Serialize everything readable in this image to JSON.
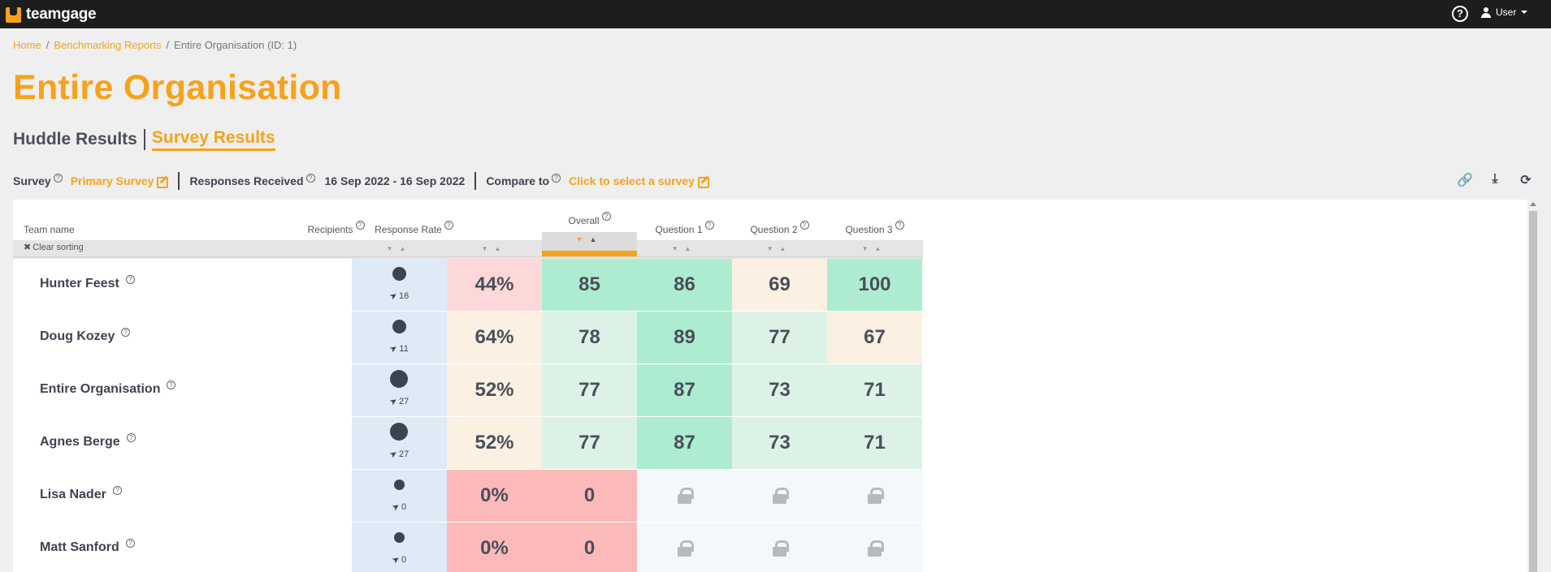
{
  "app": {
    "logo_text": "teamgage",
    "user_label": "User",
    "help_glyph": "?"
  },
  "breadcrumb": {
    "home": "Home",
    "reports": "Benchmarking Reports",
    "current": "Entire Organisation (ID: 1)",
    "sep": "/"
  },
  "page_title": "Entire Organisation",
  "tabs": {
    "huddle": "Huddle Results",
    "survey": "Survey Results"
  },
  "filters": {
    "survey_label": "Survey",
    "survey_value": "Primary Survey",
    "responses_label": "Responses Received",
    "responses_value": "16 Sep 2022 - 16 Sep 2022",
    "compare_label": "Compare to",
    "compare_value": "Click to select a survey"
  },
  "toolbar": {
    "link_icon": "🔗",
    "download_icon": "⤓",
    "refresh_icon": "⟳"
  },
  "table": {
    "headers": {
      "team": "Team name",
      "recipients": "Recipients",
      "response_rate": "Response Rate",
      "overall": "Overall",
      "q1": "Question 1",
      "q2": "Question 2",
      "q3": "Question 3"
    },
    "clear_sorting": "Clear sorting",
    "sort_glyphs": "▼▲",
    "rows": [
      {
        "name": "Hunter Feest",
        "recipients": "16",
        "rate": "44%",
        "overall": "85",
        "q1": "86",
        "q2": "69",
        "q3": "100"
      },
      {
        "name": "Doug Kozey",
        "recipients": "11",
        "rate": "64%",
        "overall": "78",
        "q1": "89",
        "q2": "77",
        "q3": "67"
      },
      {
        "name": "Entire Organisation",
        "recipients": "27",
        "rate": "52%",
        "overall": "77",
        "q1": "87",
        "q2": "73",
        "q3": "71"
      },
      {
        "name": "Agnes Berge",
        "recipients": "27",
        "rate": "52%",
        "overall": "77",
        "q1": "87",
        "q2": "73",
        "q3": "71"
      },
      {
        "name": "Lisa Nader",
        "recipients": "0",
        "rate": "0%",
        "overall": "0",
        "q1": "locked",
        "q2": "locked",
        "q3": "locked"
      },
      {
        "name": "Matt Sanford",
        "recipients": "0",
        "rate": "0%",
        "overall": "0",
        "q1": "locked",
        "q2": "locked",
        "q3": "locked"
      }
    ]
  },
  "colors": {
    "accent": "#f7a21b",
    "red_low": "#fcb9b9",
    "red_mid": "#fdd8d8",
    "beige": "#fbf0e1",
    "green_light": "#dcf2e7",
    "green_strong": "#aeecd1",
    "locked": "#f4f8fb"
  }
}
